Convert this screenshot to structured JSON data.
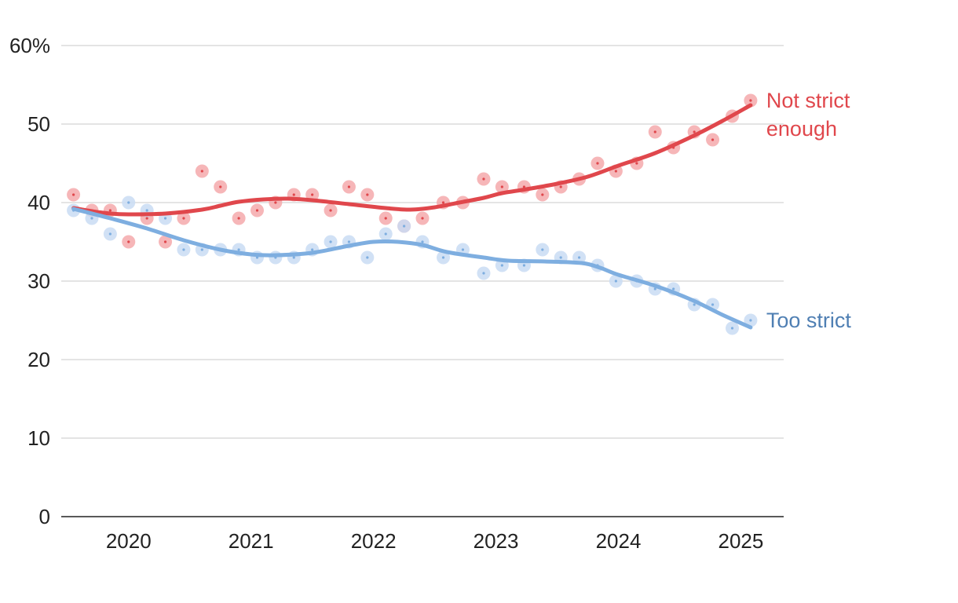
{
  "chart_data": {
    "type": "scatter",
    "title": "",
    "xlabel": "",
    "ylabel": "",
    "ylim": [
      0,
      60
    ],
    "xlim": [
      2019.45,
      2025.35
    ],
    "y_ticks": [
      {
        "value": 0,
        "label": "0"
      },
      {
        "value": 10,
        "label": "10"
      },
      {
        "value": 20,
        "label": "20"
      },
      {
        "value": 30,
        "label": "30"
      },
      {
        "value": 40,
        "label": "40"
      },
      {
        "value": 50,
        "label": "50"
      },
      {
        "value": 60,
        "label": "60%"
      }
    ],
    "x_ticks": [
      {
        "value": 2020,
        "label": "2020"
      },
      {
        "value": 2021,
        "label": "2021"
      },
      {
        "value": 2022,
        "label": "2022"
      },
      {
        "value": 2023,
        "label": "2023"
      },
      {
        "value": 2024,
        "label": "2024"
      },
      {
        "value": 2025,
        "label": "2025"
      }
    ],
    "grid": true,
    "legend": "direct labels at right end of lines",
    "series": [
      {
        "name": "Not strict enough",
        "label_lines": [
          "Not strict",
          "enough"
        ],
        "color": "#e0474c",
        "point_color": "#f4a9ab",
        "points": [
          {
            "x": 2019.55,
            "y": 41
          },
          {
            "x": 2019.7,
            "y": 39
          },
          {
            "x": 2019.85,
            "y": 39
          },
          {
            "x": 2020.0,
            "y": 35
          },
          {
            "x": 2020.15,
            "y": 38
          },
          {
            "x": 2020.3,
            "y": 35
          },
          {
            "x": 2020.45,
            "y": 38
          },
          {
            "x": 2020.6,
            "y": 44
          },
          {
            "x": 2020.75,
            "y": 42
          },
          {
            "x": 2020.9,
            "y": 38
          },
          {
            "x": 2021.05,
            "y": 39
          },
          {
            "x": 2021.2,
            "y": 40
          },
          {
            "x": 2021.35,
            "y": 41
          },
          {
            "x": 2021.5,
            "y": 41
          },
          {
            "x": 2021.65,
            "y": 39
          },
          {
            "x": 2021.8,
            "y": 42
          },
          {
            "x": 2021.95,
            "y": 41
          },
          {
            "x": 2022.1,
            "y": 38
          },
          {
            "x": 2022.25,
            "y": 37
          },
          {
            "x": 2022.4,
            "y": 38
          },
          {
            "x": 2022.57,
            "y": 40
          },
          {
            "x": 2022.73,
            "y": 40
          },
          {
            "x": 2022.9,
            "y": 43
          },
          {
            "x": 2023.05,
            "y": 42
          },
          {
            "x": 2023.23,
            "y": 42
          },
          {
            "x": 2023.38,
            "y": 41
          },
          {
            "x": 2023.53,
            "y": 42
          },
          {
            "x": 2023.68,
            "y": 43
          },
          {
            "x": 2023.83,
            "y": 45
          },
          {
            "x": 2023.98,
            "y": 44
          },
          {
            "x": 2024.15,
            "y": 45
          },
          {
            "x": 2024.3,
            "y": 49
          },
          {
            "x": 2024.45,
            "y": 47
          },
          {
            "x": 2024.62,
            "y": 49
          },
          {
            "x": 2024.77,
            "y": 48
          },
          {
            "x": 2024.93,
            "y": 51
          },
          {
            "x": 2025.08,
            "y": 53
          }
        ],
        "trend": [
          {
            "x": 2019.55,
            "y": 39.3
          },
          {
            "x": 2019.7,
            "y": 38.9
          },
          {
            "x": 2019.85,
            "y": 38.6
          },
          {
            "x": 2020.0,
            "y": 38.5
          },
          {
            "x": 2020.3,
            "y": 38.6
          },
          {
            "x": 2020.6,
            "y": 39.1
          },
          {
            "x": 2020.75,
            "y": 39.6
          },
          {
            "x": 2020.9,
            "y": 40.1
          },
          {
            "x": 2021.1,
            "y": 40.4
          },
          {
            "x": 2021.3,
            "y": 40.5
          },
          {
            "x": 2021.5,
            "y": 40.3
          },
          {
            "x": 2021.8,
            "y": 39.8
          },
          {
            "x": 2022.1,
            "y": 39.3
          },
          {
            "x": 2022.3,
            "y": 39.1
          },
          {
            "x": 2022.5,
            "y": 39.4
          },
          {
            "x": 2022.7,
            "y": 40.0
          },
          {
            "x": 2022.9,
            "y": 40.6
          },
          {
            "x": 2023.05,
            "y": 41.2
          },
          {
            "x": 2023.25,
            "y": 41.7
          },
          {
            "x": 2023.5,
            "y": 42.4
          },
          {
            "x": 2023.75,
            "y": 43.3
          },
          {
            "x": 2024.0,
            "y": 44.7
          },
          {
            "x": 2024.3,
            "y": 46.3
          },
          {
            "x": 2024.6,
            "y": 48.4
          },
          {
            "x": 2024.85,
            "y": 50.4
          },
          {
            "x": 2025.08,
            "y": 52.4
          }
        ]
      },
      {
        "name": "Too strict",
        "label_lines": [
          "Too strict"
        ],
        "color": "#7eaee0",
        "label_color": "#4f7fb3",
        "point_color": "#c9dcf3",
        "points": [
          {
            "x": 2019.55,
            "y": 39
          },
          {
            "x": 2019.7,
            "y": 38
          },
          {
            "x": 2019.85,
            "y": 36
          },
          {
            "x": 2020.0,
            "y": 40
          },
          {
            "x": 2020.15,
            "y": 39
          },
          {
            "x": 2020.3,
            "y": 38
          },
          {
            "x": 2020.45,
            "y": 34
          },
          {
            "x": 2020.6,
            "y": 34
          },
          {
            "x": 2020.75,
            "y": 34
          },
          {
            "x": 2020.9,
            "y": 34
          },
          {
            "x": 2021.05,
            "y": 33
          },
          {
            "x": 2021.2,
            "y": 33
          },
          {
            "x": 2021.35,
            "y": 33
          },
          {
            "x": 2021.5,
            "y": 34
          },
          {
            "x": 2021.65,
            "y": 35
          },
          {
            "x": 2021.8,
            "y": 35
          },
          {
            "x": 2021.95,
            "y": 33
          },
          {
            "x": 2022.1,
            "y": 36
          },
          {
            "x": 2022.25,
            "y": 37
          },
          {
            "x": 2022.4,
            "y": 35
          },
          {
            "x": 2022.57,
            "y": 33
          },
          {
            "x": 2022.73,
            "y": 34
          },
          {
            "x": 2022.9,
            "y": 31
          },
          {
            "x": 2023.05,
            "y": 32
          },
          {
            "x": 2023.23,
            "y": 32
          },
          {
            "x": 2023.38,
            "y": 34
          },
          {
            "x": 2023.53,
            "y": 33
          },
          {
            "x": 2023.68,
            "y": 33
          },
          {
            "x": 2023.83,
            "y": 32
          },
          {
            "x": 2023.98,
            "y": 30
          },
          {
            "x": 2024.15,
            "y": 30
          },
          {
            "x": 2024.3,
            "y": 29
          },
          {
            "x": 2024.45,
            "y": 29
          },
          {
            "x": 2024.62,
            "y": 27
          },
          {
            "x": 2024.77,
            "y": 27
          },
          {
            "x": 2024.93,
            "y": 24
          },
          {
            "x": 2025.08,
            "y": 25
          }
        ],
        "trend": [
          {
            "x": 2019.55,
            "y": 39.2
          },
          {
            "x": 2019.85,
            "y": 38.0
          },
          {
            "x": 2020.15,
            "y": 36.7
          },
          {
            "x": 2020.45,
            "y": 35.2
          },
          {
            "x": 2020.75,
            "y": 34.0
          },
          {
            "x": 2021.0,
            "y": 33.4
          },
          {
            "x": 2021.2,
            "y": 33.3
          },
          {
            "x": 2021.5,
            "y": 33.6
          },
          {
            "x": 2021.8,
            "y": 34.5
          },
          {
            "x": 2022.0,
            "y": 35.0
          },
          {
            "x": 2022.2,
            "y": 35.0
          },
          {
            "x": 2022.4,
            "y": 34.6
          },
          {
            "x": 2022.6,
            "y": 33.7
          },
          {
            "x": 2022.9,
            "y": 33.0
          },
          {
            "x": 2023.1,
            "y": 32.6
          },
          {
            "x": 2023.4,
            "y": 32.5
          },
          {
            "x": 2023.7,
            "y": 32.3
          },
          {
            "x": 2023.85,
            "y": 31.7
          },
          {
            "x": 2024.0,
            "y": 30.8
          },
          {
            "x": 2024.3,
            "y": 29.4
          },
          {
            "x": 2024.6,
            "y": 27.6
          },
          {
            "x": 2024.85,
            "y": 25.7
          },
          {
            "x": 2025.08,
            "y": 24.1
          }
        ]
      }
    ]
  }
}
